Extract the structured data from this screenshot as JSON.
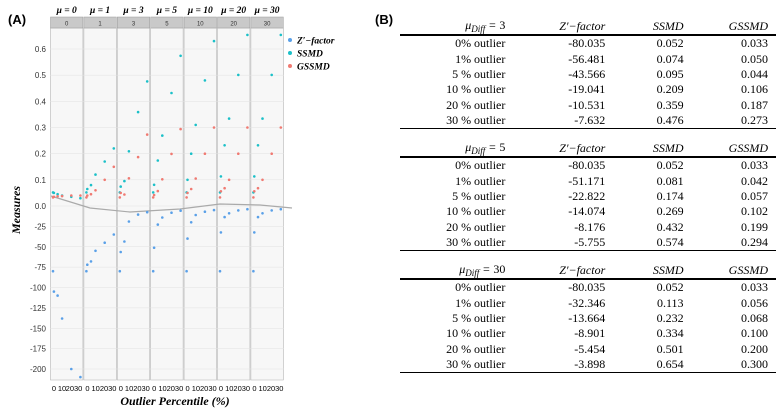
{
  "panels": {
    "a": "(A)",
    "b": "(B)"
  },
  "chart_data": {
    "type": "scatter",
    "xlabel": "Outlier Percentile (%)",
    "ylabel": "Measures",
    "ylim": [
      -215,
      0.72
    ],
    "yticks": [
      0.6,
      0.5,
      0.4,
      0.3,
      0.2,
      0.1,
      0.0,
      -25,
      -50,
      -75,
      -100,
      -125,
      -150,
      -175,
      -200
    ],
    "facets": [
      "μ = 0",
      "μ = 1",
      "μ = 3",
      "μ = 5",
      "μ = 10",
      "μ = 20",
      "μ = 30"
    ],
    "strip_labels": [
      "0",
      "1",
      "3",
      "5",
      "10",
      "20",
      "30"
    ],
    "x_ticks_first_panel": [
      "0",
      "10",
      "2030"
    ],
    "x_ticks_other_panels": [
      "0",
      "10",
      "20",
      "30"
    ],
    "legend": [
      {
        "name": "Z′−factor",
        "color": "#5aa0e8"
      },
      {
        "name": "SSMD",
        "color": "#1bc0c8"
      },
      {
        "name": "GSSMD",
        "color": "#f07a72"
      }
    ],
    "x_percentiles": [
      0,
      1,
      5,
      10,
      20,
      30
    ],
    "series": [
      {
        "name": "Z′−factor",
        "color": "#5aa0e8",
        "values_by_facet": [
          [
            -80.035,
            -105,
            -110,
            -138,
            -200,
            -210
          ],
          [
            -80.035,
            -72,
            -68,
            -55,
            -45,
            -35
          ],
          [
            -80.035,
            -56.481,
            -43.566,
            -19.041,
            -10.531,
            -7.632
          ],
          [
            -80.035,
            -51.171,
            -22.822,
            -14.074,
            -8.176,
            -5.755
          ],
          [
            -80.035,
            -40,
            -20,
            -11,
            -7,
            -5
          ],
          [
            -80.035,
            -32.346,
            -13.664,
            -8.901,
            -5.454,
            -3.898
          ],
          [
            -80.035,
            -32.346,
            -13.664,
            -8.901,
            -5.454,
            -3.898
          ]
        ]
      },
      {
        "name": "SSMD",
        "color": "#1bc0c8",
        "values_by_facet": [
          [
            0.052,
            0.05,
            0.045,
            0.04,
            0.035,
            0.03
          ],
          [
            0.052,
            0.065,
            0.08,
            0.12,
            0.17,
            0.22
          ],
          [
            0.052,
            0.074,
            0.095,
            0.209,
            0.359,
            0.476
          ],
          [
            0.052,
            0.081,
            0.174,
            0.269,
            0.432,
            0.574
          ],
          [
            0.052,
            0.1,
            0.2,
            0.31,
            0.48,
            0.63
          ],
          [
            0.052,
            0.113,
            0.232,
            0.334,
            0.501,
            0.654
          ],
          [
            0.052,
            0.113,
            0.232,
            0.334,
            0.501,
            0.654
          ]
        ]
      },
      {
        "name": "GSSMD",
        "color": "#f07a72",
        "values_by_facet": [
          [
            0.033,
            0.035,
            0.037,
            0.038,
            0.04,
            0.04
          ],
          [
            0.033,
            0.04,
            0.045,
            0.06,
            0.1,
            0.15
          ],
          [
            0.033,
            0.05,
            0.044,
            0.106,
            0.187,
            0.273
          ],
          [
            0.033,
            0.042,
            0.057,
            0.102,
            0.199,
            0.294
          ],
          [
            0.033,
            0.05,
            0.065,
            0.105,
            0.2,
            0.3
          ],
          [
            0.033,
            0.056,
            0.068,
            0.1,
            0.2,
            0.3
          ],
          [
            0.033,
            0.056,
            0.068,
            0.1,
            0.2,
            0.3
          ]
        ]
      }
    ]
  },
  "tables": [
    {
      "mu": "3",
      "headers": [
        "Z′−factor",
        "SSMD",
        "GSSMD"
      ],
      "rows": [
        [
          "0% outlier",
          "-80.035",
          "0.052",
          "0.033"
        ],
        [
          "1% outlier",
          "-56.481",
          "0.074",
          "0.050"
        ],
        [
          "5 % outlier",
          "-43.566",
          "0.095",
          "0.044"
        ],
        [
          "10 % outlier",
          "-19.041",
          "0.209",
          "0.106"
        ],
        [
          "20 % outlier",
          "-10.531",
          "0.359",
          "0.187"
        ],
        [
          "30 % outlier",
          "-7.632",
          "0.476",
          "0.273"
        ]
      ]
    },
    {
      "mu": "5",
      "headers": [
        "Z′−factor",
        "SSMD",
        "GSSMD"
      ],
      "rows": [
        [
          "0% outlier",
          "-80.035",
          "0.052",
          "0.033"
        ],
        [
          "1% outlier",
          "-51.171",
          "0.081",
          "0.042"
        ],
        [
          "5 % outlier",
          "-22.822",
          "0.174",
          "0.057"
        ],
        [
          "10 % outlier",
          "-14.074",
          "0.269",
          "0.102"
        ],
        [
          "20 % outlier",
          "-8.176",
          "0.432",
          "0.199"
        ],
        [
          "30 % outlier",
          "-5.755",
          "0.574",
          "0.294"
        ]
      ]
    },
    {
      "mu": "30",
      "headers": [
        "Z′−factor",
        "SSMD",
        "GSSMD"
      ],
      "rows": [
        [
          "0% outlier",
          "-80.035",
          "0.052",
          "0.033"
        ],
        [
          "1% outlier",
          "-32.346",
          "0.113",
          "0.056"
        ],
        [
          "5 % outlier",
          "-13.664",
          "0.232",
          "0.068"
        ],
        [
          "10 % outlier",
          "-8.901",
          "0.334",
          "0.100"
        ],
        [
          "20 % outlier",
          "-5.454",
          "0.501",
          "0.200"
        ],
        [
          "30 % outlier",
          "-3.898",
          "0.654",
          "0.300"
        ]
      ]
    }
  ]
}
